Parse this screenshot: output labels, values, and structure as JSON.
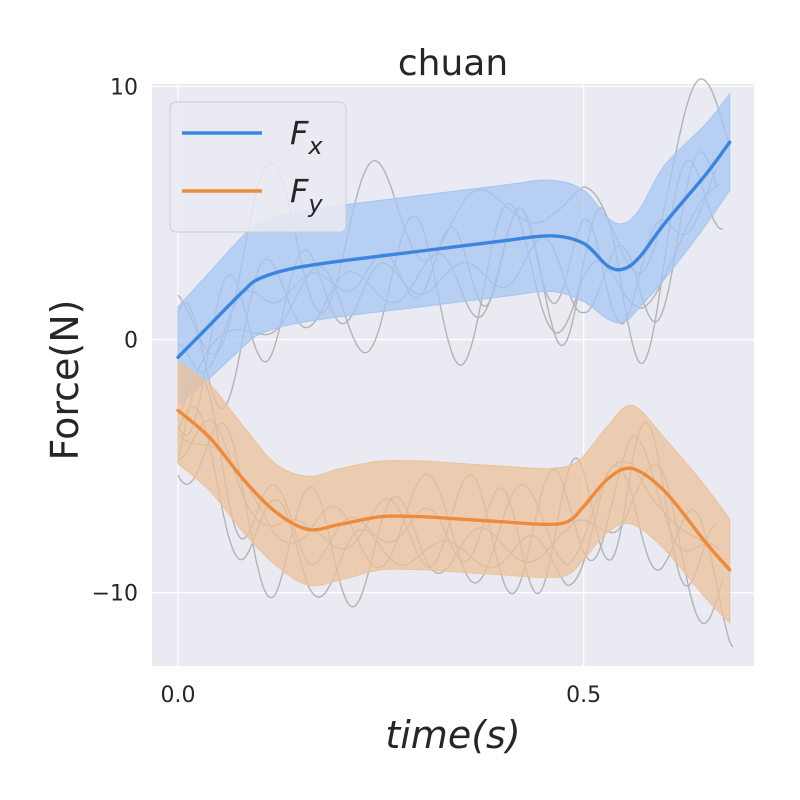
{
  "chart_data": {
    "type": "line",
    "title": "chuan",
    "xlabel": "time(s)",
    "ylabel": "Force(N)",
    "xlim": [
      -0.032,
      0.71
    ],
    "ylim": [
      -12.9,
      10.1
    ],
    "xticks": [
      {
        "value": 0.0,
        "label": "0.0"
      },
      {
        "value": 0.5,
        "label": "0.5"
      }
    ],
    "yticks": [
      {
        "value": 10,
        "label": "10"
      },
      {
        "value": 0,
        "label": "0"
      },
      {
        "value": -10,
        "label": "−10"
      }
    ],
    "grid": true,
    "legend": {
      "position": "top-left"
    },
    "series": [
      {
        "name": "F",
        "subscript": "x",
        "color": "#3a86de",
        "band_color": "#a5c5f2",
        "x": [
          0.0,
          0.04,
          0.08,
          0.1,
          0.14,
          0.2,
          0.3,
          0.4,
          0.46,
          0.5,
          0.53,
          0.55,
          0.57,
          0.6,
          0.65,
          0.68
        ],
        "y": [
          -0.7,
          0.6,
          1.9,
          2.4,
          2.8,
          3.1,
          3.5,
          3.9,
          4.1,
          3.8,
          2.9,
          2.8,
          3.3,
          4.6,
          6.5,
          7.8
        ],
        "lower": [
          -2.6,
          -1.5,
          -0.3,
          0.2,
          0.6,
          0.9,
          1.3,
          1.7,
          1.9,
          1.5,
          0.8,
          0.7,
          1.3,
          2.4,
          4.5,
          5.9
        ],
        "upper": [
          1.3,
          2.7,
          4.1,
          4.6,
          5.0,
          5.3,
          5.7,
          6.1,
          6.3,
          5.9,
          4.8,
          4.6,
          5.2,
          6.9,
          8.5,
          9.7
        ]
      },
      {
        "name": "F",
        "subscript": "y",
        "color": "#ee8a3c",
        "band_color": "#ecc19b",
        "x": [
          0.0,
          0.04,
          0.08,
          0.12,
          0.16,
          0.2,
          0.25,
          0.3,
          0.35,
          0.4,
          0.45,
          0.48,
          0.5,
          0.53,
          0.56,
          0.6,
          0.65,
          0.68
        ],
        "y": [
          -2.8,
          -3.9,
          -5.5,
          -6.8,
          -7.5,
          -7.3,
          -7.0,
          -7.0,
          -7.1,
          -7.2,
          -7.3,
          -7.2,
          -6.6,
          -5.5,
          -5.1,
          -6.0,
          -8.0,
          -9.1
        ],
        "lower": [
          -4.9,
          -6.0,
          -7.6,
          -8.9,
          -9.7,
          -9.5,
          -9.1,
          -9.1,
          -9.2,
          -9.3,
          -9.4,
          -9.3,
          -8.7,
          -7.6,
          -7.3,
          -8.3,
          -10.2,
          -11.2
        ],
        "upper": [
          -0.9,
          -1.8,
          -3.4,
          -4.9,
          -5.4,
          -5.1,
          -4.8,
          -4.8,
          -4.9,
          -5.0,
          -5.1,
          -5.0,
          -4.6,
          -3.4,
          -2.6,
          -3.9,
          -5.8,
          -7.1
        ]
      }
    ]
  }
}
